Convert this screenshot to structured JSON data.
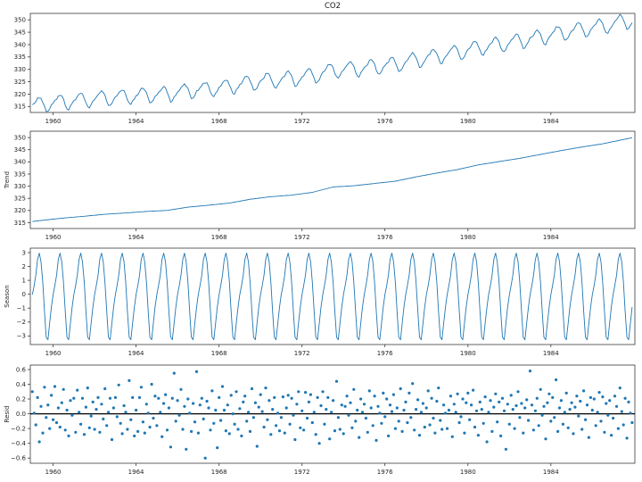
{
  "title": "CO2",
  "figure": {
    "background": "#ffffff"
  },
  "axes_style": {
    "spine_color": "#3a3a3a",
    "tick_color": "#3a3a3a",
    "tick_label_color": "#262626",
    "line_color": "#1f77b4",
    "dot_color": "#1f77b4",
    "zero_line_color": "#000000"
  },
  "x_axis": {
    "lim": [
      1958.9,
      1988.05
    ],
    "ticks": [
      1960,
      1964,
      1968,
      1972,
      1976,
      1980,
      1984
    ],
    "start": 1959.0,
    "months": 348,
    "step": "monthly"
  },
  "chart_data": [
    {
      "id": "observed",
      "type": "line",
      "panel_title": "CO2",
      "ylabel": "",
      "ylim": [
        312.6,
        352.6
      ],
      "yticks": [
        315,
        320,
        325,
        330,
        335,
        340,
        345,
        350
      ],
      "ytick_decimals": 0,
      "composition": "trend + seasonal + resid"
    },
    {
      "id": "trend",
      "type": "line",
      "ylabel": "Trend",
      "ylim": [
        312.6,
        352.6
      ],
      "yticks": [
        315,
        320,
        325,
        330,
        335,
        340,
        345,
        350
      ],
      "ytick_decimals": 0,
      "anchor_years": [
        1959,
        1960,
        1961,
        1962,
        1963,
        1964,
        1965,
        1966,
        1967,
        1968,
        1969,
        1970,
        1971,
        1972,
        1973,
        1974,
        1975,
        1976,
        1977,
        1978,
        1979,
        1980,
        1981,
        1982,
        1983,
        1984,
        1985,
        1986,
        1987
      ],
      "annual_means": [
        315.97,
        316.91,
        317.64,
        318.45,
        318.99,
        319.62,
        320.04,
        321.37,
        322.18,
        323.04,
        324.62,
        325.68,
        326.32,
        327.45,
        329.68,
        330.18,
        331.11,
        332.04,
        333.83,
        335.4,
        336.84,
        338.75,
        340.11,
        341.45,
        343.05,
        344.65,
        346.12,
        347.42,
        349.19
      ]
    },
    {
      "id": "seasonal",
      "type": "line",
      "ylabel": "Season",
      "ylim": [
        -3.62,
        3.32
      ],
      "yticks": [
        3,
        2,
        1,
        0,
        -1,
        -2,
        -3
      ],
      "ytick_decimals": 0,
      "monthly_pattern": [
        -0.03,
        0.63,
        1.38,
        2.51,
        2.96,
        2.33,
        0.85,
        -1.23,
        -3.09,
        -3.27,
        -2.08,
        -0.93
      ]
    },
    {
      "id": "resid",
      "type": "scatter",
      "ylabel": "Resid",
      "ylim": [
        -0.67,
        0.66
      ],
      "yticks": [
        0.6,
        0.4,
        0.2,
        0.0,
        -0.2,
        -0.4,
        -0.6
      ],
      "ytick_decimals": 1,
      "zero_line": 0.0,
      "values": [
        0.3,
        0.01,
        -0.15,
        0.22,
        -0.38,
        0.1,
        -0.26,
        0.36,
        -0.05,
        0.12,
        -0.2,
        0.25,
        -0.08,
        0.37,
        -0.12,
        0.08,
        -0.18,
        0.15,
        0.33,
        -0.22,
        0.05,
        -0.3,
        0.18,
        -0.02,
        0.21,
        -0.25,
        0.32,
        0.02,
        -0.14,
        0.21,
        -0.28,
        0.09,
        0.35,
        -0.19,
        -0.03,
        0.16,
        -0.21,
        0.06,
        0.22,
        -0.25,
        0.13,
        -0.07,
        0.34,
        -0.16,
        0.02,
        0.21,
        -0.35,
        0.08,
        0.22,
        -0.04,
        0.39,
        -0.13,
        -0.27,
        0.11,
        0.02,
        -0.21,
        0.45,
        -0.08,
        0.22,
        -0.3,
        0.05,
        -0.24,
        0.22,
        0.36,
        -0.11,
        -0.26,
        0.13,
        0.01,
        -0.18,
        0.4,
        -0.06,
        0.24,
        -0.16,
        0.21,
        0.02,
        -0.31,
        0.14,
        0.26,
        -0.22,
        0.08,
        -0.45,
        0.21,
        0.55,
        -0.1,
        0.18,
        -0.02,
        0.33,
        -0.21,
        0.1,
        -0.48,
        0.2,
        0.01,
        -0.24,
        0.14,
        -0.11,
        0.57,
        -0.26,
        0.12,
        0.21,
        -0.07,
        -0.6,
        0.17,
        0.08,
        -0.22,
        0.31,
        -0.13,
        0.05,
        -0.46,
        0.22,
        -0.09,
        0.37,
        0.05,
        -0.23,
        0.12,
        -0.27,
        0.25,
        0.0,
        -0.14,
        0.3,
        -0.21,
        0.07,
        -0.3,
        0.16,
        0.24,
        -0.1,
        0.02,
        -0.24,
        0.34,
        -0.05,
        0.15,
        -0.44,
        0.09,
        0.26,
        0.03,
        -0.18,
        0.35,
        -0.08,
        0.18,
        -0.28,
        0.06,
        0.22,
        -0.16,
        0.01,
        -0.23,
        -0.05,
        0.23,
        -0.26,
        0.08,
        0.25,
        -0.14,
        0.21,
        -0.02,
        -0.35,
        0.13,
        0.3,
        -0.19,
        0.04,
        -0.22,
        0.29,
        -0.06,
        0.16,
        0.26,
        -0.12,
        0.02,
        -0.28,
        0.22,
        -0.4,
        0.11,
        0.3,
        -0.14,
        0.06,
        0.22,
        -0.34,
        0.02,
        0.18,
        -0.23,
        0.44,
        -0.05,
        -0.21,
        0.12,
        -0.27,
        0.1,
        0.24,
        -0.02,
        0.15,
        -0.19,
        0.33,
        -0.1,
        0.05,
        -0.32,
        0.2,
        0.02,
        0.13,
        -0.06,
        -0.25,
        0.31,
        0.08,
        -0.16,
        0.24,
        -0.36,
        0.1,
        0.01,
        -0.13,
        0.28,
        -0.04,
        0.2,
        -0.3,
        0.12,
        0.03,
        0.26,
        -0.2,
        0.08,
        -0.1,
        0.34,
        -0.24,
        0.05,
        0.16,
        -0.12,
        0.28,
        -0.05,
        0.41,
        -0.22,
        0.06,
        0.19,
        -0.29,
        0.02,
        0.14,
        -0.18,
        0.08,
        0.31,
        -0.15,
        0.21,
        -0.06,
        -0.26,
        0.17,
        0.35,
        -0.09,
        -0.21,
        0.12,
        0.01,
        -0.2,
        0.05,
        0.24,
        -0.31,
        0.13,
        0.02,
        0.27,
        -0.12,
        -0.04,
        0.2,
        -0.26,
        0.15,
        0.28,
        -0.08,
        0.12,
        0.32,
        -0.18,
        0.04,
        -0.29,
        0.16,
        0.06,
        -0.13,
        0.23,
        -0.38,
        0.02,
        0.18,
        -0.24,
        0.09,
        0.27,
        -0.11,
        0.16,
        -0.3,
        0.21,
        0.04,
        -0.48,
        0.13,
        -0.14,
        0.25,
        0.06,
        -0.2,
        0.11,
        0.3,
        -0.05,
        0.14,
        -0.26,
        0.08,
        0.19,
        -0.09,
        0.58,
        0.12,
        -0.22,
        0.04,
        0.21,
        -0.16,
        0.33,
        -0.02,
        0.1,
        -0.34,
        0.15,
        0.27,
        -0.1,
        0.22,
        -0.05,
        0.46,
        -0.24,
        0.08,
        0.18,
        -0.14,
        0.02,
        0.28,
        -0.19,
        0.06,
        0.15,
        -0.27,
        0.09,
        0.24,
        -0.03,
        0.17,
        -0.21,
        0.31,
        -0.08,
        0.12,
        -0.32,
        0.22,
        0.05,
        0.2,
        -0.16,
        0.02,
        0.29,
        -0.1,
        0.23,
        -0.25,
        0.14,
        -0.02,
        0.18,
        -0.29,
        -0.06,
        0.24,
        0.1,
        -0.2,
        0.35,
        0.03,
        -0.15,
        0.21,
        -0.33,
        0.16,
        0.01,
        -0.12
      ]
    }
  ]
}
